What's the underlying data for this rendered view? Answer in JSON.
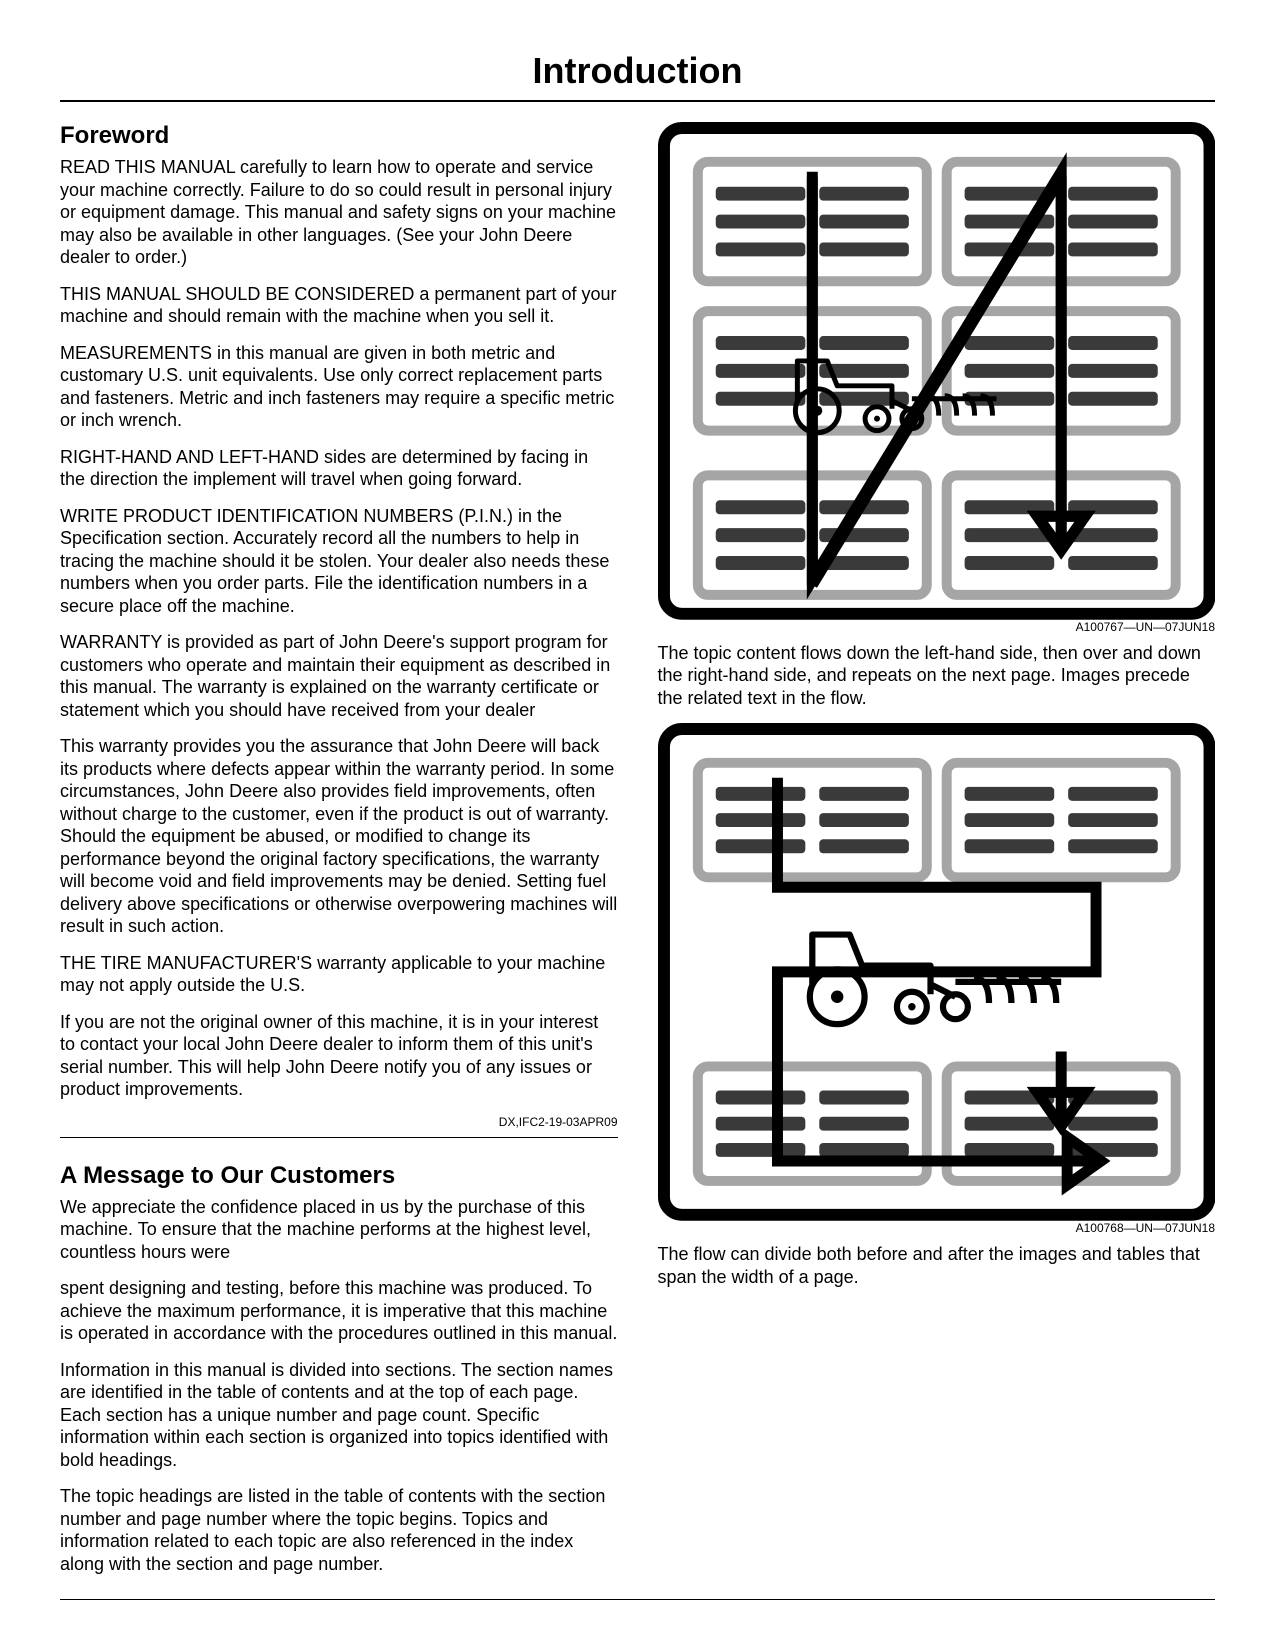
{
  "title": "Introduction",
  "foreword": {
    "heading": "Foreword",
    "p1": "READ THIS MANUAL carefully to learn how to operate and service your machine correctly. Failure to do so could result in personal injury or equipment damage. This manual and safety signs on your machine may also be available in other languages. (See your John Deere dealer to order.)",
    "p2": "THIS MANUAL SHOULD BE CONSIDERED a permanent part of your machine and should remain with the machine when you sell it.",
    "p3": "MEASUREMENTS in this manual are given in both metric and customary U.S. unit equivalents. Use only correct replacement parts and fasteners. Metric and inch fasteners may require a specific metric or inch wrench.",
    "p4": "RIGHT-HAND AND LEFT-HAND sides are determined by facing in the direction the implement will travel when going forward.",
    "p5": "WRITE PRODUCT IDENTIFICATION NUMBERS (P.I.N.) in the Specification section. Accurately record all the numbers to help in tracing the machine should it be stolen. Your dealer also needs these numbers when you order parts. File the identification numbers in a secure place off the machine.",
    "p6": "WARRANTY is provided as part of John Deere's support program for customers who operate and maintain their equipment as described in this manual. The warranty is explained on the warranty certificate or statement which you should have received from your dealer",
    "p7": "This warranty provides you the assurance that John Deere will back its products where defects appear within the warranty period. In some circumstances, John Deere also provides field improvements, often without charge to the customer, even if the product is out of warranty. Should the equipment be abused, or modified to change its performance beyond the original factory specifications, the warranty will become void and field improvements may be denied. Setting fuel delivery above specifications or otherwise overpowering machines will result in such action.",
    "p8": "THE TIRE MANUFACTURER'S warranty applicable to your machine may not apply outside the U.S.",
    "p9": "If you are not the original owner of this machine, it is in your interest to contact your local John Deere dealer to inform them of this unit's serial number. This will help John Deere notify you of any issues or product improvements.",
    "ref": "DX,IFC2-19-03APR09"
  },
  "message": {
    "heading": "A Message to Our Customers",
    "p1": "We appreciate the confidence placed in us by the purchase of this machine. To ensure that the machine performs at the highest level, countless hours were",
    "p2": "spent designing and testing, before this machine was produced. To achieve the maximum performance, it is imperative that this machine is operated in accordance with the procedures outlined in this manual.",
    "p3": "Information in this manual is divided into sections. The section names are identified in the table of contents and at the top of each page. Each section has a unique number and page count. Specific information within each section is organized into topics identified with bold headings.",
    "p4": "The topic headings are listed in the table of contents with the section number and page number where the topic begins. Topics and information related to each topic are also referenced in the index along with the section and page number.",
    "fig1_ref": "A100767—UN—07JUN18",
    "p5": "The topic content flows down the left-hand side, then over and down the right-hand side, and repeats on the next page. Images precede the related text in the flow.",
    "fig2_ref": "A100768—UN—07JUN18",
    "p6": "The flow can divide both before and after the images and tables that span the width of a page."
  },
  "figure": {
    "outer_border": "#000000",
    "outer_bg": "#ffffff",
    "panel_border": "#a5a5a5",
    "panel_bg": "#ffffff",
    "bar_light": "#b8b8b8",
    "bar_dark": "#3a3a3a",
    "arrow": "#000000",
    "tractor": "#000000",
    "corner_radius": 18
  }
}
